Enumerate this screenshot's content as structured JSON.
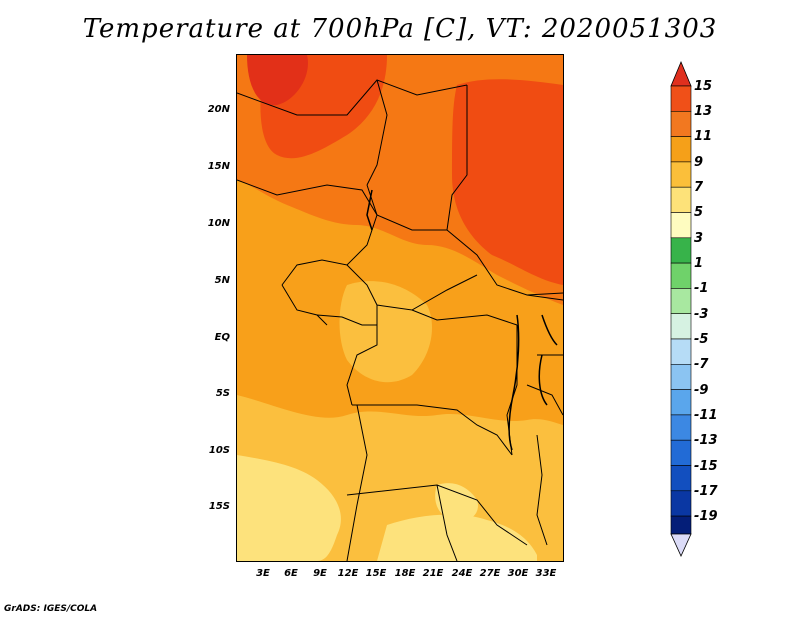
{
  "title": "Temperature at 700hPa [C], VT: 2020051303",
  "credit": "GrADS: IGES/COLA",
  "lat_labels": [
    "20N",
    "15N",
    "10N",
    "5N",
    "EQ",
    "5S",
    "10S",
    "15S"
  ],
  "lon_labels": [
    "3E",
    "6E",
    "9E",
    "12E",
    "15E",
    "18E",
    "21E",
    "24E",
    "27E",
    "30E",
    "33E"
  ],
  "colorbar": {
    "labels": [
      "15",
      "13",
      "11",
      "9",
      "7",
      "5",
      "3",
      "1",
      "-1",
      "-3",
      "-5",
      "-7",
      "-9",
      "-11",
      "-13",
      "-15",
      "-17",
      "-19"
    ],
    "colors": [
      "#e0301e",
      "#f05018",
      "#f27820",
      "#f5a019",
      "#fbbf3a",
      "#fde279",
      "#fefcc0",
      "#37b34a",
      "#6fd26a",
      "#a8e8a0",
      "#d6f2e2",
      "#b6dcf6",
      "#8bc4f2",
      "#5aa6ec",
      "#3c88e3",
      "#226bd6",
      "#124fbf",
      "#0a37a3",
      "#041e78",
      "#dcdcf8"
    ]
  },
  "map_colors": {
    "c15": "#e23018",
    "c13": "#f04c12",
    "c11": "#f57814",
    "c9": "#f8a01a",
    "c7": "#fbbf3e",
    "c5": "#fde27c",
    "border": "#000000"
  }
}
